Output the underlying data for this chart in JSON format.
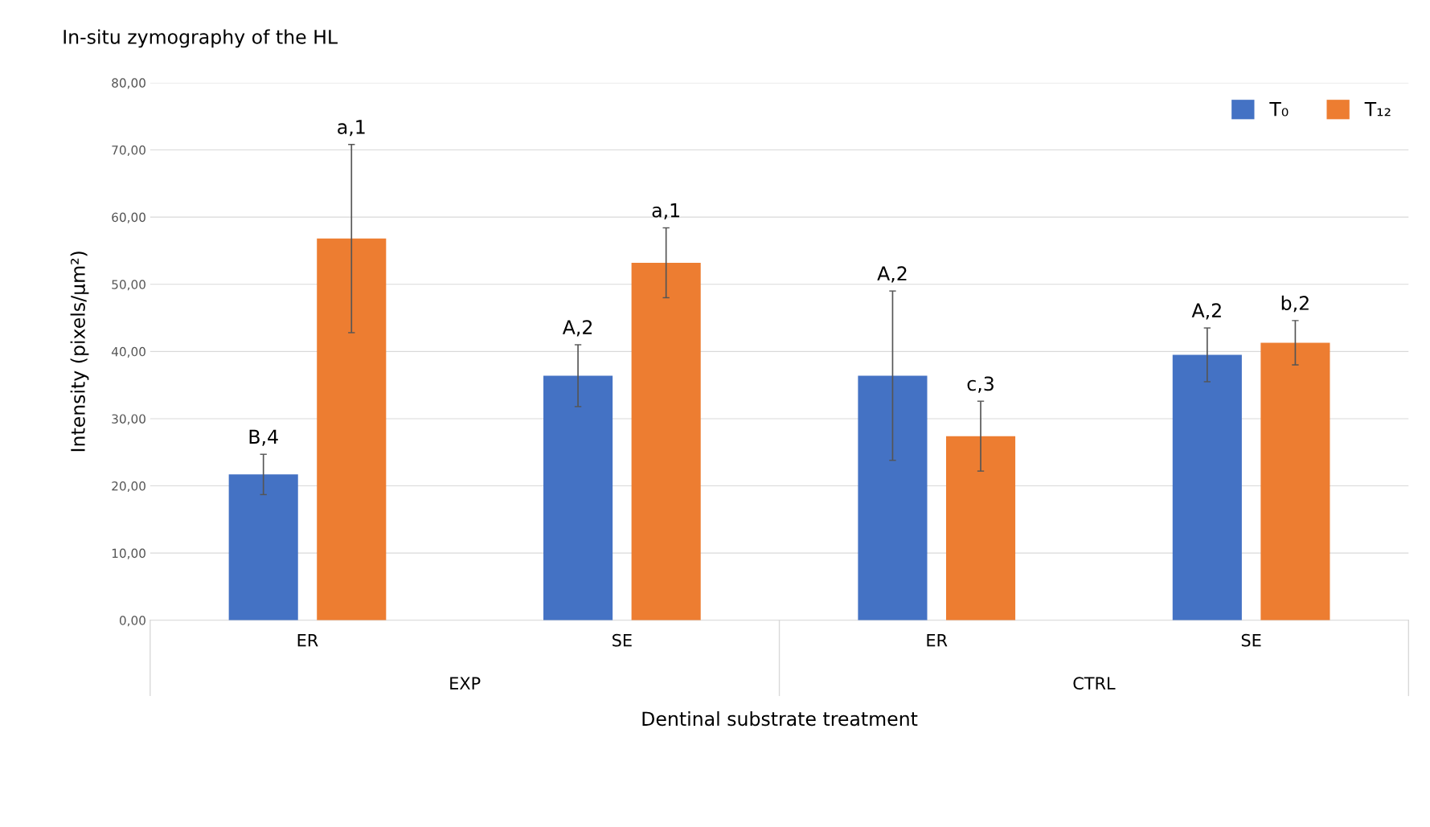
{
  "chart_data": {
    "type": "bar",
    "title": "In-situ zymography of the HL",
    "xlabel": "Dentinal substrate treatment",
    "ylabel": "Intensity (pixels/µm²)",
    "categories": [
      "ER",
      "SE",
      "ER",
      "SE"
    ],
    "series": [
      {
        "name": "T₀",
        "color": "#4472c4",
        "values": [
          21.7,
          36.4,
          36.4,
          39.5
        ],
        "errors": [
          3,
          4.6,
          12.6,
          4
        ]
      },
      {
        "name": "T₁₂",
        "color": "#ed7d31",
        "values": [
          56.8,
          53.2,
          27.4,
          41.3
        ],
        "errors": [
          14,
          5.2,
          5.2,
          3.3
        ]
      }
    ],
    "ylim": [
      0,
      80
    ],
    "yticks": [
      {
        "value": 0,
        "label": "0,00"
      },
      {
        "value": 10,
        "label": "10,00"
      },
      {
        "value": 20,
        "label": "20,00"
      },
      {
        "value": 30,
        "label": "30,00"
      },
      {
        "value": 40,
        "label": "40,00"
      },
      {
        "value": 50,
        "label": "50,00"
      },
      {
        "value": 60,
        "label": "60,00"
      },
      {
        "value": 70,
        "label": "70,00"
      },
      {
        "value": 80,
        "label": "80,00"
      }
    ],
    "grid": "y",
    "legend": "top right",
    "annotations": [
      "EXP",
      "CTRL",
      {
        "text": "B,4",
        "y": 24.7
      },
      {
        "text": "A,2",
        "y": 41.0
      },
      {
        "text": "A,2",
        "y": 49.0
      },
      {
        "text": "A,2",
        "y": 43.5
      },
      {
        "text": "a,1",
        "y": 70.8
      },
      {
        "text": "a,1",
        "y": 58.4
      },
      {
        "text": "c,3",
        "y": 32.6
      },
      {
        "text": "b,2",
        "y": 44.6
      }
    ]
  }
}
